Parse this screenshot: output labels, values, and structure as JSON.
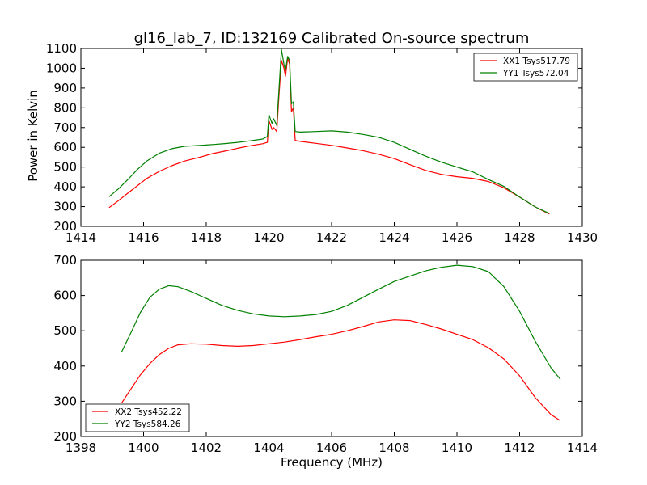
{
  "figure": {
    "title": "gl16_lab_7, ID:132169 Calibrated On-source spectrum",
    "shared_xlabel": "Frequency (MHz)"
  },
  "colors": {
    "red": "#ff0000",
    "green": "#008000"
  },
  "chart_data": [
    {
      "type": "line",
      "title": "gl16_lab_7, ID:132169 Calibrated On-source spectrum",
      "xlabel": "",
      "ylabel": "Power in Kelvin",
      "xlim": [
        1414,
        1430
      ],
      "ylim": [
        200,
        1100
      ],
      "xticks": [
        "1414",
        "1416",
        "1418",
        "1420",
        "1422",
        "1424",
        "1426",
        "1428",
        "1430"
      ],
      "yticks": [
        "200",
        "300",
        "400",
        "500",
        "600",
        "700",
        "800",
        "900",
        "1000",
        "1100"
      ],
      "grid": false,
      "legend_position": "top-right",
      "series": [
        {
          "name": "XX1 Tsys517.79",
          "color": "#ff0000",
          "x": [
            1414.9,
            1415.2,
            1415.5,
            1415.8,
            1416.1,
            1416.5,
            1416.9,
            1417.3,
            1417.8,
            1418.2,
            1418.6,
            1419.0,
            1419.4,
            1419.8,
            1419.95,
            1420.0,
            1420.1,
            1420.15,
            1420.25,
            1420.32,
            1420.4,
            1420.48,
            1420.53,
            1420.6,
            1420.66,
            1420.72,
            1420.78,
            1420.84,
            1421.0,
            1421.5,
            1422.0,
            1422.5,
            1423.0,
            1423.5,
            1424.0,
            1424.5,
            1425.0,
            1425.5,
            1426.0,
            1426.5,
            1427.0,
            1427.5,
            1428.0,
            1428.5,
            1428.95
          ],
          "y": [
            295,
            330,
            368,
            405,
            442,
            478,
            507,
            530,
            550,
            568,
            581,
            595,
            608,
            618,
            625,
            735,
            690,
            700,
            680,
            860,
            1040,
            1000,
            960,
            1050,
            1020,
            780,
            800,
            635,
            630,
            620,
            610,
            597,
            583,
            565,
            543,
            512,
            483,
            463,
            451,
            443,
            427,
            395,
            348,
            298,
            262
          ]
        },
        {
          "name": "YY1 Tsys572.04",
          "color": "#008000",
          "x": [
            1414.9,
            1415.2,
            1415.5,
            1415.8,
            1416.1,
            1416.5,
            1416.9,
            1417.3,
            1417.8,
            1418.2,
            1418.6,
            1419.0,
            1419.4,
            1419.8,
            1419.95,
            1420.0,
            1420.1,
            1420.15,
            1420.25,
            1420.32,
            1420.4,
            1420.48,
            1420.53,
            1420.6,
            1420.66,
            1420.72,
            1420.78,
            1420.84,
            1421.0,
            1421.5,
            1422.0,
            1422.5,
            1423.0,
            1423.5,
            1424.0,
            1424.5,
            1425.0,
            1425.5,
            1426.0,
            1426.5,
            1427.0,
            1427.5,
            1428.0,
            1428.5,
            1428.95
          ],
          "y": [
            350,
            390,
            437,
            487,
            530,
            570,
            593,
            605,
            610,
            614,
            619,
            625,
            633,
            642,
            655,
            765,
            720,
            745,
            710,
            890,
            1095,
            1020,
            990,
            1060,
            1040,
            820,
            830,
            680,
            677,
            680,
            683,
            677,
            665,
            651,
            625,
            590,
            555,
            525,
            500,
            476,
            437,
            402,
            348,
            298,
            265
          ]
        }
      ]
    },
    {
      "type": "line",
      "title": "",
      "xlabel": "Frequency (MHz)",
      "ylabel": "",
      "xlim": [
        1398,
        1414
      ],
      "ylim": [
        200,
        700
      ],
      "xticks": [
        "1398",
        "1400",
        "1402",
        "1404",
        "1406",
        "1408",
        "1410",
        "1412",
        "1414"
      ],
      "yticks": [
        "200",
        "300",
        "400",
        "500",
        "600",
        "700"
      ],
      "grid": false,
      "legend_position": "bottom-left",
      "series": [
        {
          "name": "XX2 Tsys452.22",
          "color": "#ff0000",
          "x": [
            1399.3,
            1399.6,
            1399.9,
            1400.2,
            1400.5,
            1400.8,
            1401.1,
            1401.5,
            1402.0,
            1402.5,
            1403.0,
            1403.5,
            1404.0,
            1404.5,
            1405.0,
            1405.5,
            1406.0,
            1406.5,
            1407.0,
            1407.5,
            1408.0,
            1408.5,
            1409.0,
            1409.5,
            1410.0,
            1410.5,
            1411.0,
            1411.5,
            1412.0,
            1412.5,
            1413.0,
            1413.3
          ],
          "y": [
            295,
            335,
            375,
            407,
            432,
            450,
            460,
            463,
            462,
            458,
            456,
            458,
            463,
            468,
            475,
            483,
            490,
            500,
            512,
            525,
            531,
            529,
            518,
            505,
            490,
            475,
            452,
            420,
            372,
            310,
            262,
            245
          ]
        },
        {
          "name": "YY2 Tsys584.26",
          "color": "#008000",
          "x": [
            1399.3,
            1399.6,
            1399.9,
            1400.2,
            1400.5,
            1400.8,
            1401.1,
            1401.5,
            1402.0,
            1402.5,
            1403.0,
            1403.5,
            1404.0,
            1404.5,
            1405.0,
            1405.5,
            1406.0,
            1406.5,
            1407.0,
            1407.5,
            1408.0,
            1408.5,
            1409.0,
            1409.5,
            1410.0,
            1410.5,
            1411.0,
            1411.5,
            1412.0,
            1412.5,
            1413.0,
            1413.3
          ],
          "y": [
            440,
            495,
            552,
            595,
            618,
            628,
            625,
            612,
            592,
            572,
            558,
            548,
            542,
            540,
            542,
            546,
            555,
            572,
            595,
            618,
            640,
            655,
            670,
            680,
            686,
            682,
            668,
            625,
            555,
            470,
            395,
            362
          ]
        }
      ]
    }
  ]
}
